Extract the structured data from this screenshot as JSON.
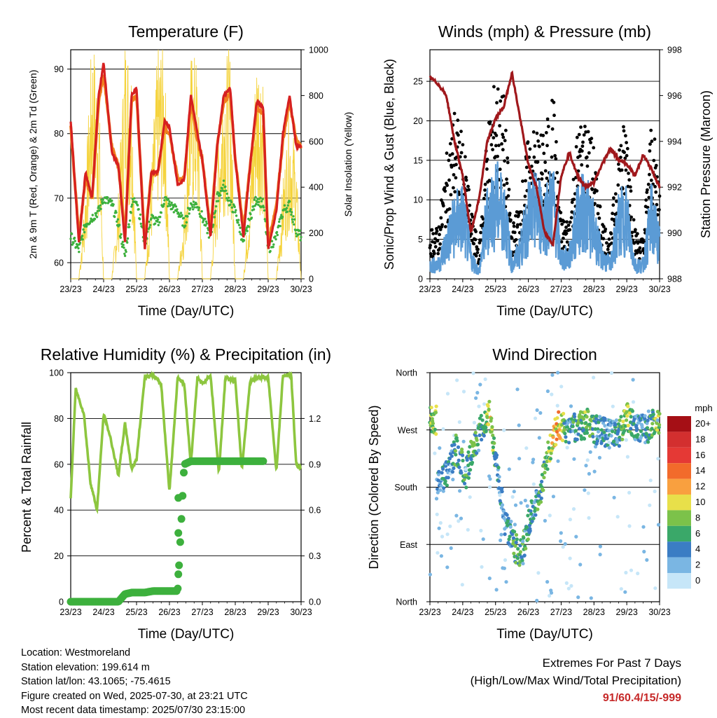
{
  "colors": {
    "temp_2m": "#d62020",
    "temp_9m": "#f07f1e",
    "dewpoint": "#3db03d",
    "solar": "#f5d33c",
    "wind_sonic": "#5b9bd5",
    "gust": "#000000",
    "pressure": "#a0181c",
    "humidity": "#8dc63f",
    "precip": "#3db03d",
    "extremes_value": "#c62828"
  },
  "time_ticks": [
    "23/23",
    "24/23",
    "25/23",
    "26/23",
    "27/23",
    "28/23",
    "29/23",
    "30/23"
  ],
  "x_axis_label": "Time (Day/UTC)",
  "chart_data": [
    {
      "type": "line",
      "title": "Temperature (F)",
      "xlabel": "Time (Day/UTC)",
      "ylabel": "2m & 9m T (Red, Orange) & 2m Td (Green)",
      "ylabel_right": "Solar Insolation (Yellow)",
      "ylim": [
        57.5,
        93
      ],
      "yticks": [
        "60",
        "70",
        "80",
        "90"
      ],
      "ylim_right": [
        0,
        1000
      ],
      "yticks_right": [
        "0",
        "200",
        "400",
        "600",
        "800",
        "1000"
      ],
      "x_days": [
        0,
        0.25,
        0.45,
        0.65,
        0.85,
        1.0,
        1.25,
        1.45,
        1.65,
        1.85,
        2.0,
        2.25,
        2.45,
        2.65,
        2.85,
        3.0,
        3.25,
        3.45,
        3.65,
        3.85,
        4.0,
        4.25,
        4.45,
        4.65,
        4.85,
        5.0,
        5.25,
        5.45,
        5.65,
        5.85,
        6.0,
        6.25,
        6.45,
        6.65,
        6.85,
        7.0
      ],
      "series": [
        {
          "name": "2m T",
          "values": [
            82,
            63,
            74,
            70,
            86,
            91,
            77,
            75,
            63,
            86,
            87,
            62,
            74,
            74,
            82,
            81,
            72,
            73,
            86,
            80,
            76,
            64,
            78,
            86,
            87,
            76,
            64,
            75,
            85,
            84,
            62,
            68,
            80,
            86,
            78,
            78
          ]
        },
        {
          "name": "9m T",
          "values": [
            81,
            64,
            73,
            70,
            85,
            89,
            78,
            75,
            64,
            85,
            86,
            63,
            74,
            74,
            81,
            80,
            73,
            73,
            85,
            79,
            76,
            65,
            78,
            85,
            86,
            76,
            65,
            75,
            84,
            83,
            63,
            69,
            79,
            85,
            79,
            78
          ]
        },
        {
          "name": "2m Td",
          "values": [
            64,
            62,
            66,
            67,
            68,
            70,
            69,
            66,
            61,
            69,
            70,
            63,
            67,
            66,
            70,
            69,
            68,
            66,
            69,
            69,
            67,
            64,
            70,
            72,
            69,
            68,
            63,
            67,
            70,
            69,
            62,
            64,
            68,
            69,
            65,
            64
          ]
        },
        {
          "name": "Solar",
          "values": [
            0,
            0,
            400,
            1000,
            800,
            0,
            0,
            350,
            1000,
            900,
            0,
            0,
            450,
            950,
            950,
            0,
            0,
            300,
            900,
            900,
            0,
            0,
            500,
            900,
            920,
            0,
            0,
            400,
            950,
            900,
            0,
            0,
            400,
            700,
            500,
            0
          ]
        }
      ]
    },
    {
      "type": "line",
      "title": "Winds (mph) & Pressure (mb)",
      "xlabel": "Time (Day/UTC)",
      "ylabel": "Sonic/Prop Wind & Gust (Blue, Black)",
      "ylabel_right": "Station Pressure (Maroon)",
      "ylim": [
        0,
        29
      ],
      "yticks": [
        "0",
        "5",
        "10",
        "15",
        "20",
        "25"
      ],
      "ylim_right": [
        988,
        998
      ],
      "yticks_right": [
        "988",
        "990",
        "992",
        "994",
        "996",
        "998"
      ],
      "x_days": [
        0,
        0.25,
        0.5,
        0.75,
        1.0,
        1.25,
        1.5,
        1.75,
        2.0,
        2.25,
        2.5,
        2.75,
        3.0,
        3.25,
        3.5,
        3.75,
        4.0,
        4.25,
        4.5,
        4.75,
        5.0,
        5.25,
        5.5,
        5.75,
        6.0,
        6.25,
        6.5,
        6.75,
        7.0
      ],
      "series": [
        {
          "name": "Sonic/Prop Wind",
          "values": [
            2,
            2,
            5,
            8,
            9,
            3,
            1,
            9,
            11,
            10,
            2,
            4,
            9,
            10,
            9,
            11,
            3,
            3,
            9,
            10,
            7,
            3,
            2,
            8,
            9,
            2,
            2,
            9,
            5
          ]
        },
        {
          "name": "Gust",
          "values": [
            5,
            5,
            12,
            17,
            14,
            7,
            3,
            15,
            20,
            18,
            5,
            8,
            14,
            15,
            14,
            19,
            6,
            6,
            15,
            16,
            13,
            6,
            4,
            14,
            16,
            5,
            4,
            16,
            10
          ]
        },
        {
          "name": "Station Pressure",
          "values": [
            996.8,
            996.5,
            996,
            994,
            992.5,
            990,
            991.5,
            994,
            995,
            995.5,
            997,
            995,
            993,
            992,
            990,
            989.5,
            992.5,
            993.5,
            992.5,
            992,
            992.2,
            993,
            993.7,
            993.2,
            993,
            992.5,
            993.4,
            992.8,
            992
          ]
        }
      ]
    },
    {
      "type": "line",
      "title": "Relative Humidity (%) & Precipitation (in)",
      "xlabel": "Time (Day/UTC)",
      "ylabel": "Percent & Total Rainfall",
      "ylim": [
        0,
        100
      ],
      "yticks": [
        "0",
        "20",
        "40",
        "60",
        "80",
        "100"
      ],
      "ylim_right": [
        0,
        1.5
      ],
      "yticks_right": [
        "0.0",
        "0.3",
        "0.6",
        "0.9",
        "1.2"
      ],
      "x_days": [
        0,
        0.15,
        0.4,
        0.6,
        0.8,
        1.0,
        1.2,
        1.45,
        1.65,
        1.85,
        2.0,
        2.25,
        2.5,
        2.75,
        3.0,
        3.25,
        3.45,
        3.65,
        3.85,
        4.0,
        4.25,
        4.5,
        4.7,
        4.85,
        5.0,
        5.2,
        5.45,
        5.65,
        5.85,
        6.0,
        6.25,
        6.45,
        6.7,
        6.85,
        7.0
      ],
      "series": [
        {
          "name": "Relative Humidity",
          "values": [
            45,
            93,
            82,
            52,
            40,
            82,
            72,
            55,
            78,
            58,
            62,
            98,
            99,
            95,
            48,
            98,
            95,
            60,
            98,
            95,
            99,
            56,
            98,
            97,
            97,
            58,
            96,
            98,
            98,
            98,
            57,
            99,
            99,
            60,
            58
          ]
        },
        {
          "name": "Total Precipitation",
          "values": [
            0,
            0,
            0,
            0,
            0,
            0,
            0,
            0,
            0.05,
            0.06,
            0.06,
            0.06,
            0.07,
            0.07,
            0.07,
            0.07,
            0.9,
            0.92,
            0.92,
            0.92,
            0.92,
            0.92,
            0.92,
            0.92,
            0.92,
            0.92,
            0.92,
            0.92,
            0.92,
            0.92,
            null,
            null,
            null,
            null,
            null
          ]
        }
      ]
    },
    {
      "type": "scatter",
      "title": "Wind Direction",
      "xlabel": "Time (Day/UTC)",
      "ylabel": "Direction (Colored By Speed)",
      "ylim": [
        0,
        360
      ],
      "yticks": [
        "North",
        "East",
        "South",
        "West",
        "North"
      ],
      "legend_title": "mph",
      "legend_labels": [
        "20+",
        "18",
        "16",
        "14",
        "12",
        "10",
        "8",
        "6",
        "4",
        "2",
        "0"
      ],
      "legend_colors": [
        "#a50f15",
        "#d32f2f",
        "#e53935",
        "#f26b2b",
        "#f9a03f",
        "#e8e04a",
        "#7cc24a",
        "#3aa869",
        "#3b7dc4",
        "#7ab6e3",
        "#c6e6f8"
      ],
      "x_days": [
        0.2,
        0.5,
        0.8,
        1.1,
        1.3,
        1.6,
        1.8,
        2.1,
        2.3,
        2.6,
        2.8,
        3.1,
        3.4,
        3.6,
        3.9,
        4.2,
        4.5,
        4.8,
        5.1,
        5.4,
        5.7,
        6.0,
        6.3,
        6.6,
        6.9
      ],
      "series": [
        {
          "name": "Direction",
          "values": [
            180,
            200,
            240,
            200,
            240,
            275,
            300,
            190,
            120,
            85,
            75,
            140,
            180,
            230,
            280,
            270,
            275,
            280,
            270,
            265,
            260,
            290,
            275,
            270,
            285
          ]
        },
        {
          "name": "Speed",
          "values": [
            3,
            4,
            6,
            5,
            7,
            5,
            10,
            3,
            4,
            6,
            7,
            4,
            6,
            8,
            12,
            4,
            6,
            8,
            4,
            3,
            5,
            9,
            3,
            4,
            8
          ]
        }
      ]
    }
  ],
  "info": {
    "location": "Location: Westmoreland",
    "elevation": "Station elevation: 199.614 m",
    "latlon": "Station lat/lon: 43.1065; -75.4615",
    "created": "Figure created on Wed, 2025-07-30, at 23:21 UTC",
    "recent": "Most recent data timestamp: 2025/07/30 23:15:00"
  },
  "extremes": {
    "title": "Extremes For Past 7 Days",
    "subtitle": "(High/Low/Max Wind/Total Precipitation)",
    "value": "91/60.4/15/-999"
  }
}
